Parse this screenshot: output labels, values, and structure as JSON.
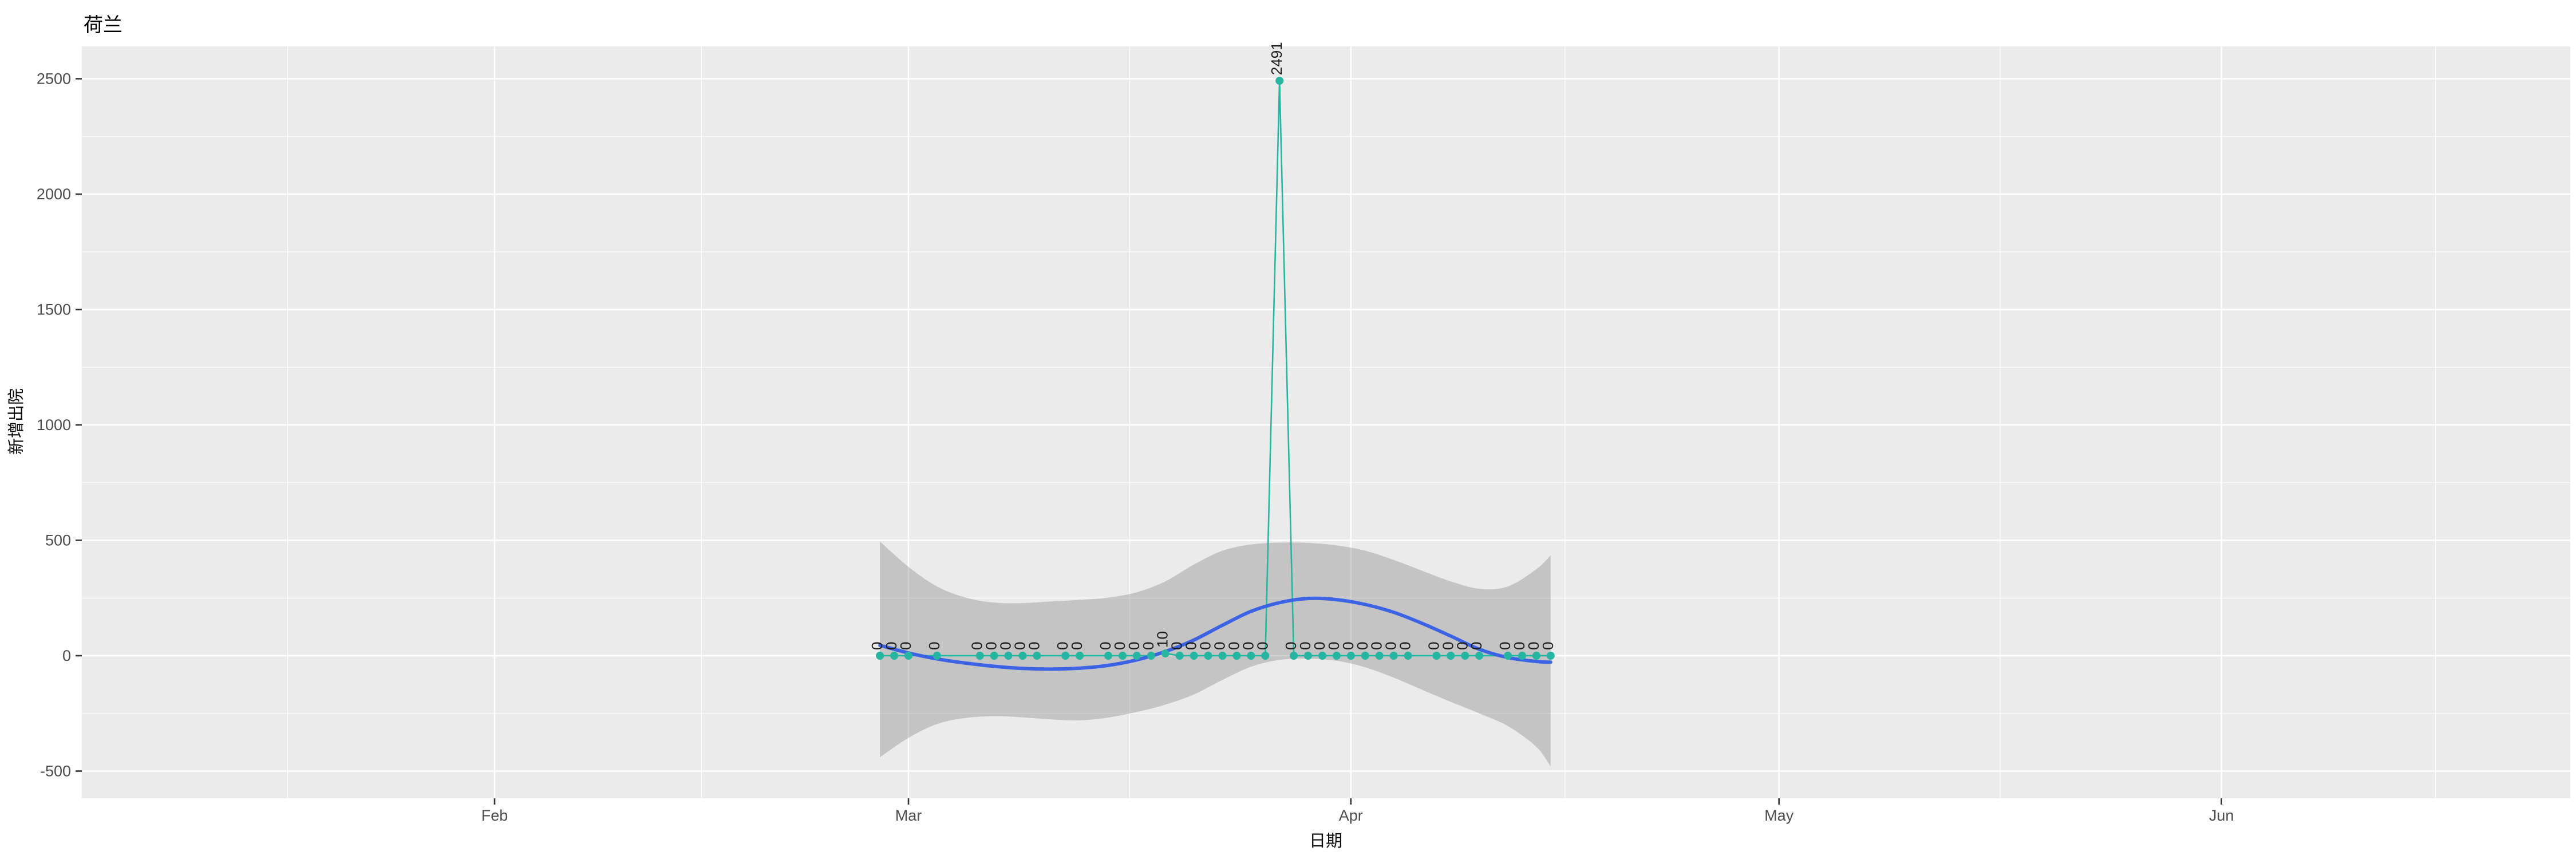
{
  "title": "荷兰",
  "axes": {
    "x_label": "日期",
    "y_label": "新增出院",
    "x_ticks": [
      {
        "label": "Feb",
        "date": "02-01"
      },
      {
        "label": "Mar",
        "date": "03-01"
      },
      {
        "label": "Apr",
        "date": "04-01"
      },
      {
        "label": "May",
        "date": "05-01"
      },
      {
        "label": "Jun",
        "date": "06-01"
      }
    ],
    "y_ticks": [
      {
        "label": "2500",
        "value": 2500
      },
      {
        "label": "2000",
        "value": 2000
      },
      {
        "label": "1500",
        "value": 1500
      },
      {
        "label": "1000",
        "value": 1000
      },
      {
        "label": "500",
        "value": 500
      },
      {
        "label": "0",
        "value": 0
      },
      {
        "label": "-500",
        "value": -500
      }
    ]
  },
  "colors": {
    "panel_background": "#EBEBEB",
    "grid": "#FFFFFF",
    "series_teal": "#26B5A0",
    "smooth_blue": "#3D63E5",
    "ribbon_gray": "rgba(124,124,124,0.35)",
    "label_text": "#1c1c1c",
    "axis_text": "#4d4d4d",
    "tick_mark": "#333333"
  },
  "chart_data": {
    "type": "line",
    "title": "荷兰",
    "xlabel": "日期",
    "ylabel": "新增出院",
    "x_tick_labels": [
      "Feb",
      "Mar",
      "Apr",
      "May",
      "Jun"
    ],
    "y_tick_values": [
      2500,
      2000,
      1500,
      1000,
      500,
      0,
      -500
    ],
    "ylim": [
      -613,
      2640
    ],
    "xlim_dates": [
      "01-03",
      "06-25"
    ],
    "grid": "on",
    "legend": "none",
    "series": [
      {
        "name": "daily_new_discharged",
        "type": "line+points+text_labels",
        "label_rotation_deg": 90,
        "points": [
          {
            "date": "02-28",
            "value": 0,
            "label": "0"
          },
          {
            "date": "02-29",
            "value": 0,
            "label": "0"
          },
          {
            "date": "03-01",
            "value": 0,
            "label": "0"
          },
          {
            "date": "03-03",
            "value": 0,
            "label": "0"
          },
          {
            "date": "03-06",
            "value": 0,
            "label": "0"
          },
          {
            "date": "03-07",
            "value": 0,
            "label": "0"
          },
          {
            "date": "03-08",
            "value": 0,
            "label": "0"
          },
          {
            "date": "03-09",
            "value": 0,
            "label": "0"
          },
          {
            "date": "03-10",
            "value": 0,
            "label": "0"
          },
          {
            "date": "03-12",
            "value": 0,
            "label": "0"
          },
          {
            "date": "03-13",
            "value": 0,
            "label": "0"
          },
          {
            "date": "03-15",
            "value": 0,
            "label": "0"
          },
          {
            "date": "03-16",
            "value": 0,
            "label": "0"
          },
          {
            "date": "03-17",
            "value": 0,
            "label": "0"
          },
          {
            "date": "03-18",
            "value": 0,
            "label": "0"
          },
          {
            "date": "03-19",
            "value": 10,
            "label": "10"
          },
          {
            "date": "03-20",
            "value": 0,
            "label": "0"
          },
          {
            "date": "03-21",
            "value": 0,
            "label": "0"
          },
          {
            "date": "03-22",
            "value": 0,
            "label": "0"
          },
          {
            "date": "03-23",
            "value": 0,
            "label": "0"
          },
          {
            "date": "03-24",
            "value": 0,
            "label": "0"
          },
          {
            "date": "03-25",
            "value": 0,
            "label": "0"
          },
          {
            "date": "03-26",
            "value": 0,
            "label": "0"
          },
          {
            "date": "03-27",
            "value": 2491,
            "label": "2491"
          },
          {
            "date": "03-28",
            "value": 0,
            "label": "0"
          },
          {
            "date": "03-29",
            "value": 0,
            "label": "0"
          },
          {
            "date": "03-30",
            "value": 0,
            "label": "0"
          },
          {
            "date": "03-31",
            "value": 0,
            "label": "0"
          },
          {
            "date": "04-01",
            "value": 0,
            "label": "0"
          },
          {
            "date": "04-02",
            "value": 0,
            "label": "0"
          },
          {
            "date": "04-03",
            "value": 0,
            "label": "0"
          },
          {
            "date": "04-04",
            "value": 0,
            "label": "0"
          },
          {
            "date": "04-05",
            "value": 0,
            "label": "0"
          },
          {
            "date": "04-07",
            "value": 0,
            "label": "0"
          },
          {
            "date": "04-08",
            "value": 0,
            "label": "0"
          },
          {
            "date": "04-09",
            "value": 0,
            "label": "0"
          },
          {
            "date": "04-10",
            "value": 0,
            "label": "0"
          },
          {
            "date": "04-12",
            "value": 0,
            "label": "0"
          },
          {
            "date": "04-13",
            "value": 0,
            "label": "0"
          },
          {
            "date": "04-14",
            "value": 0,
            "label": "0"
          },
          {
            "date": "04-15",
            "value": 0,
            "label": "0"
          }
        ]
      },
      {
        "name": "loess_smooth_trend",
        "type": "line",
        "days_since_mar1": [
          -2,
          0,
          2,
          4,
          6,
          8,
          10,
          12,
          14,
          16,
          18,
          20,
          22,
          24,
          26,
          28,
          30,
          32,
          34,
          36,
          38,
          40,
          42,
          44,
          45
        ],
        "values": [
          45,
          12,
          -14,
          -32,
          -46,
          -55,
          -58,
          -54,
          -42,
          -18,
          18,
          68,
          132,
          192,
          230,
          248,
          243,
          222,
          188,
          140,
          85,
          28,
          -8,
          -25,
          -28
        ]
      },
      {
        "name": "confidence_band",
        "type": "area",
        "days_since_mar1": [
          -2,
          0,
          2,
          4,
          6,
          8,
          10,
          12,
          14,
          16,
          18,
          20,
          22,
          24,
          26,
          28,
          30,
          32,
          34,
          36,
          38,
          40,
          42,
          44,
          45
        ],
        "upper": [
          495,
          385,
          300,
          252,
          230,
          228,
          235,
          242,
          252,
          275,
          322,
          395,
          455,
          482,
          490,
          489,
          478,
          455,
          415,
          368,
          322,
          290,
          300,
          375,
          435
        ],
        "lower": [
          -440,
          -356,
          -296,
          -270,
          -262,
          -267,
          -276,
          -280,
          -268,
          -244,
          -212,
          -168,
          -105,
          -48,
          -18,
          -13,
          -22,
          -50,
          -95,
          -148,
          -200,
          -250,
          -305,
          -395,
          -480
        ]
      }
    ]
  }
}
